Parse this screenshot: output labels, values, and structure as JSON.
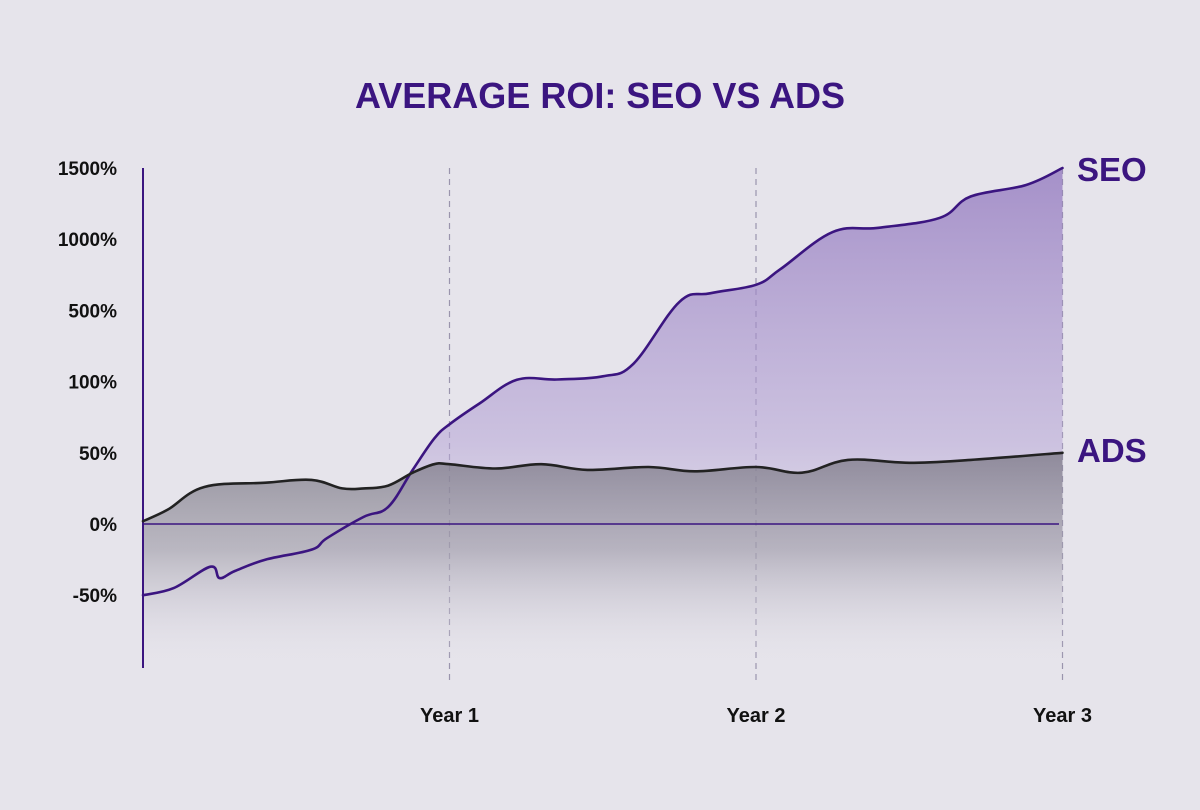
{
  "chart_data": {
    "type": "area",
    "title": "AVERAGE ROI: SEO VS ADS",
    "xlabel": "",
    "ylabel": "",
    "x_ticks": [
      "Year 1",
      "Year 2",
      "Year 3"
    ],
    "x_range": [
      0,
      3
    ],
    "y_ticks": [
      "1500%",
      "1000%",
      "500%",
      "100%",
      "50%",
      "0%",
      "-50%"
    ],
    "y_scale": "nonlinear (ticks evenly spaced at -50, 0, 50, 100, 500, 1000, 1500 %)",
    "grid": "vertical dashed lines at each year",
    "legend": "series labels at right end of lines",
    "series": [
      {
        "name": "SEO",
        "color": "#3b1580",
        "x": [
          0,
          0.1,
          0.22,
          0.25,
          0.3,
          0.4,
          0.55,
          0.6,
          0.72,
          0.8,
          0.88,
          0.95,
          1.0,
          1.1,
          1.22,
          1.35,
          1.5,
          1.6,
          1.75,
          1.85,
          2.0,
          2.08,
          2.25,
          2.4,
          2.6,
          2.7,
          2.88,
          3.0
        ],
        "y": [
          -50,
          -45,
          -30,
          -38,
          -33,
          -25,
          -18,
          -10,
          5,
          12,
          38,
          60,
          70,
          85,
          110,
          112,
          130,
          200,
          560,
          620,
          680,
          790,
          1050,
          1080,
          1150,
          1300,
          1380,
          1500
        ]
      },
      {
        "name": "ADS",
        "color": "#222222",
        "x": [
          0,
          0.08,
          0.2,
          0.4,
          0.55,
          0.65,
          0.72,
          0.8,
          0.88,
          0.95,
          1.0,
          1.15,
          1.3,
          1.45,
          1.65,
          1.8,
          2.0,
          2.15,
          2.3,
          2.5,
          2.7,
          3.0
        ],
        "y": [
          2,
          10,
          26,
          29,
          31,
          25,
          25,
          27,
          36,
          42,
          42,
          39,
          42,
          38,
          40,
          37,
          40,
          36,
          45,
          43,
          45,
          50
        ]
      }
    ]
  }
}
